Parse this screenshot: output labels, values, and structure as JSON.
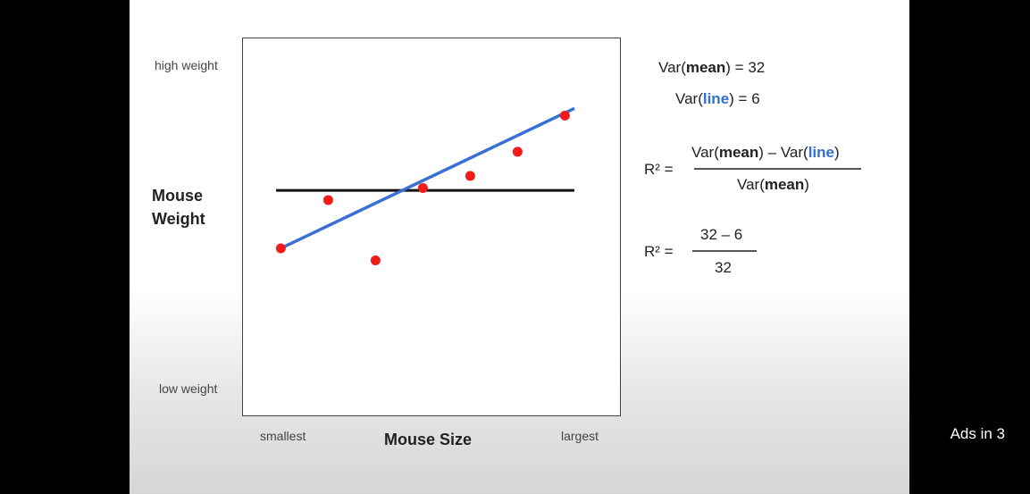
{
  "slide": {
    "y_high_label": "high weight",
    "y_low_label": "low weight",
    "y_axis_title_line1": "Mouse",
    "y_axis_title_line2": "Weight",
    "x_small_label": "smallest",
    "x_large_label": "largest",
    "x_axis_title": "Mouse Size"
  },
  "equations": {
    "var_prefix": "Var(",
    "mean_word": "mean",
    "line_word": "line",
    "var_mean_value": ") = 32",
    "var_line_value": ") = 6",
    "r2_label": "R² =",
    "minus": ") – Var(",
    "close": ")",
    "r2_num2": "32 – 6",
    "r2_den2": "32"
  },
  "overlay": {
    "ads_text": "Ads in 3"
  },
  "colors": {
    "points": "#f01c1c",
    "fit_line": "#3a6fd8",
    "mean_line": "#111111"
  },
  "chart_data": {
    "type": "scatter",
    "points": [
      [
        1,
        2.5
      ],
      [
        2,
        4.5
      ],
      [
        3,
        2.0
      ],
      [
        4,
        5.0
      ],
      [
        5,
        5.5
      ],
      [
        6,
        6.5
      ],
      [
        7,
        8.0
      ]
    ],
    "mean": 4.9,
    "fit_line": {
      "x": [
        1,
        7.2
      ],
      "y": [
        2.5,
        8.3
      ]
    },
    "xlim": [
      0.2,
      8.2
    ],
    "ylim": [
      -4.5,
      11.2
    ]
  }
}
